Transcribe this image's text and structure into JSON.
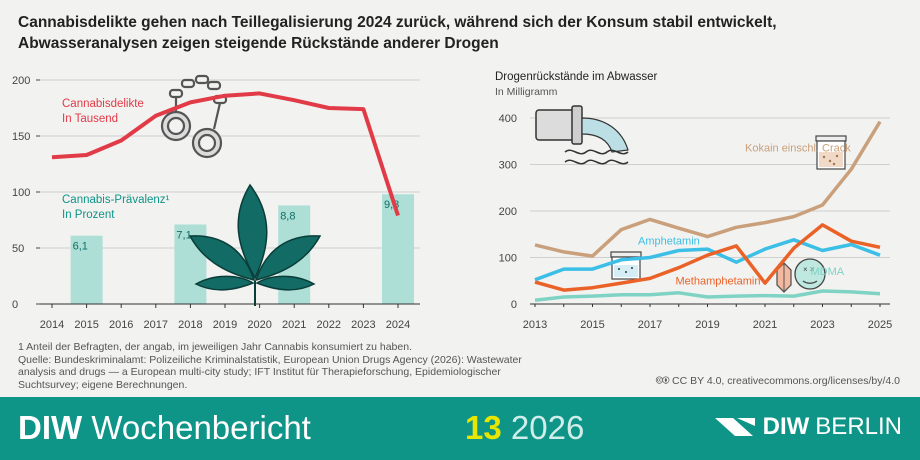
{
  "title": "Cannabisdelikte gehen nach Teillegalisierung 2024 zurück, während sich der Konsum stabil entwickelt, Abwasseranalysen zeigen steigende Rückstände anderer Drogen",
  "footnote": [
    "1  Anteil der Befragten, der angab, im jeweiligen Jahr Cannabis konsumiert zu haben.",
    "Quelle: Bundeskriminalamt: Polizeiliche Kriminalstatistik, European Union Drugs Agency (2026): Wastewater analysis and drugs — a European multi-city study; IFT Institut für Therapieforschung, Epidemiologischer Suchtsurvey; eigene Berechnungen."
  ],
  "license": "CC BY 4.0, creativecommons.org/licenses/by/4.0",
  "footer": {
    "brand_bold": "DIW",
    "brand_rest": "Wochenbericht",
    "issue_number": "13",
    "issue_year": "2026",
    "logo_bold": "DIW",
    "logo_rest": "BERLIN"
  },
  "colors": {
    "delikte": "#e23b48",
    "praevalenz": "#aedfd6",
    "kokain": "#c9a07b",
    "amphetamin": "#3cbfe6",
    "methamphetamin": "#ea6228",
    "mdma": "#7fd3c4",
    "footer": "#0f9488"
  },
  "icons": [
    "handcuffs-icon",
    "cannabis-leaf-icon",
    "pipe-water-icon",
    "crack-jar-icon",
    "amphetamine-jar-icon",
    "crystal-icon",
    "mdma-pill-icon",
    "cc-icon"
  ],
  "chart_data": [
    {
      "type": "bar",
      "x": [
        2014,
        2015,
        2016,
        2017,
        2018,
        2019,
        2020,
        2021,
        2022,
        2023,
        2024
      ],
      "ylim": [
        0,
        200
      ],
      "yticks": [
        0,
        50,
        100,
        150,
        200
      ],
      "series": [
        {
          "name": "Cannabisdelikte",
          "unit": "In Tausend",
          "type": "line",
          "x": [
            2014,
            2015,
            2016,
            2017,
            2018,
            2019,
            2020,
            2021,
            2022,
            2023,
            2024
          ],
          "values": [
            131,
            133,
            146,
            168,
            180,
            186,
            188,
            182,
            175,
            174,
            79
          ]
        },
        {
          "name": "Cannabis-Prävalenz¹",
          "unit": "In Prozent",
          "type": "bar",
          "x": [
            2015,
            2018,
            2021,
            2024
          ],
          "values": [
            6.1,
            7.1,
            8.8,
            9.8
          ],
          "labels": [
            "6,1",
            "7,1",
            "8,8",
            "9,8"
          ]
        }
      ]
    },
    {
      "type": "line",
      "title": "Drogenrückstände im Abwasser",
      "subtitle": "In Milligramm",
      "x": [
        2013,
        2014,
        2015,
        2016,
        2017,
        2018,
        2019,
        2020,
        2021,
        2022,
        2023,
        2024,
        2025
      ],
      "xticks": [
        2013,
        2015,
        2017,
        2019,
        2021,
        2023,
        2025
      ],
      "ylim": [
        0,
        400
      ],
      "yticks": [
        0,
        100,
        200,
        300,
        400
      ],
      "series": [
        {
          "name": "Kokain einschl. Crack",
          "values": [
            127,
            112,
            103,
            160,
            182,
            163,
            145,
            165,
            175,
            188,
            213,
            290,
            392
          ]
        },
        {
          "name": "Amphetamin",
          "values": [
            52,
            75,
            75,
            95,
            100,
            115,
            118,
            90,
            118,
            138,
            115,
            128,
            105
          ]
        },
        {
          "name": "Methamphetamin",
          "values": [
            47,
            30,
            35,
            45,
            55,
            78,
            105,
            125,
            45,
            120,
            170,
            135,
            122
          ]
        },
        {
          "name": "MDMA",
          "values": [
            8,
            15,
            17,
            20,
            20,
            24,
            15,
            17,
            18,
            17,
            28,
            26,
            22
          ]
        }
      ]
    }
  ]
}
